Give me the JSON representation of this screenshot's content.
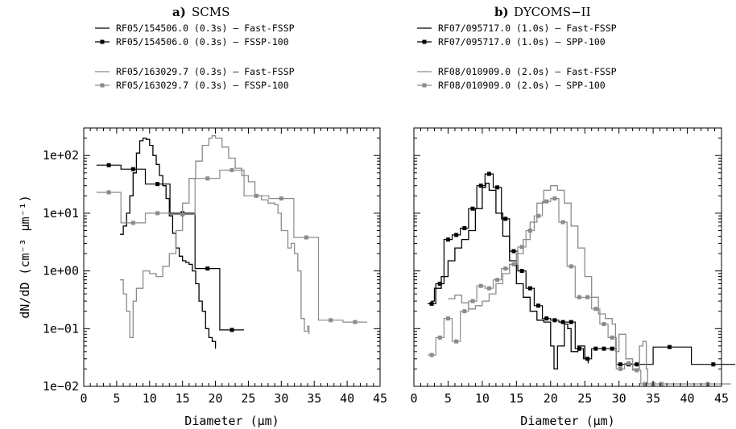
{
  "colors": {
    "dark": "#000000",
    "light": "#8a8a8a",
    "frame": "#000000"
  },
  "chart_data": [
    {
      "type": "line",
      "panel_letter": "a)",
      "title": "SCMS",
      "xlabel": "Diameter (μm)",
      "ylabel": "dN/dD (cm⁻³ μm⁻¹)",
      "xlim": [
        0,
        45
      ],
      "ylim": [
        0.01,
        300
      ],
      "yscale": "log",
      "xticks": [
        "0",
        "5",
        "10",
        "15",
        "20",
        "25",
        "30",
        "35",
        "40",
        "45"
      ],
      "yticks": [
        "1e−02",
        "1e−01",
        "1e+00",
        "1e+01",
        "1e+02"
      ],
      "grid": false,
      "legend_position": "above-plot",
      "series": [
        {
          "name": "RF05/154506.0 (0.3s) – Fast-FSSP",
          "color": "dark",
          "markers": false,
          "x": [
            5.5,
            6.0,
            6.5,
            7.0,
            7.5,
            8.0,
            8.5,
            9.0,
            9.5,
            10.0,
            10.5,
            11.0,
            11.5,
            12.0,
            12.5,
            13.0,
            13.5,
            14.0,
            14.5,
            15.0,
            15.5,
            16.0,
            16.5,
            17.0,
            17.5,
            18.0,
            18.5,
            19.0,
            19.5,
            20.0
          ],
          "y": [
            4.3,
            6.0,
            10,
            20,
            50,
            110,
            180,
            200,
            190,
            150,
            100,
            70,
            45,
            30,
            18,
            9,
            4.5,
            2.5,
            1.8,
            1.5,
            1.4,
            1.3,
            1.0,
            0.6,
            0.3,
            0.2,
            0.1,
            0.07,
            0.06,
            0.045
          ]
        },
        {
          "name": "RF05/154506.0 (0.3s) – FSSP-100",
          "color": "dark",
          "markers": true,
          "x": [
            3.8,
            7.5,
            11.2,
            15.0,
            18.8,
            22.5
          ],
          "y": [
            68,
            58,
            32,
            10,
            1.1,
            0.095
          ]
        },
        {
          "name": "RF05/163029.7 (0.3s) – Fast-FSSP",
          "color": "light",
          "markers": false,
          "x": [
            5.5,
            6.0,
            6.5,
            7.0,
            7.5,
            8.0,
            9.0,
            10.0,
            11.0,
            12.0,
            13.0,
            14.0,
            15.0,
            16.0,
            17.0,
            18.0,
            19.0,
            19.5,
            20.0,
            21.0,
            22.0,
            23.0,
            24.0,
            25.0,
            26.0,
            27.0,
            28.0,
            29.0,
            29.5,
            30.0,
            31.0,
            31.5,
            32.0,
            32.5,
            33.0,
            33.5,
            34.0,
            34.2
          ],
          "y": [
            0.7,
            0.4,
            0.2,
            0.07,
            0.3,
            0.5,
            1.0,
            0.9,
            0.8,
            1.2,
            2,
            5,
            15,
            40,
            80,
            150,
            200,
            220,
            200,
            140,
            90,
            60,
            45,
            35,
            20,
            17,
            15,
            14,
            10,
            5,
            2.5,
            3,
            2,
            1.0,
            0.15,
            0.09,
            0.11,
            0.08
          ]
        },
        {
          "name": "RF05/163029.7 (0.3s) – FSSP-100",
          "color": "light",
          "markers": true,
          "x": [
            3.8,
            7.5,
            11.2,
            15.0,
            18.8,
            22.5,
            26.2,
            30.0,
            33.8,
            37.5,
            41.2
          ],
          "y": [
            23,
            6.8,
            10,
            9.5,
            40,
            56,
            20,
            18,
            3.8,
            0.14,
            0.13
          ]
        }
      ]
    },
    {
      "type": "line",
      "panel_letter": "b)",
      "title": "DYCOMS−II",
      "xlabel": "Diameter (μm)",
      "ylabel": "",
      "xlim": [
        0,
        45
      ],
      "ylim": [
        0.01,
        300
      ],
      "yscale": "log",
      "xticks": [
        "0",
        "5",
        "10",
        "15",
        "20",
        "25",
        "30",
        "35",
        "40",
        "45"
      ],
      "yticks": [],
      "grid": false,
      "legend_position": "above-plot",
      "series": [
        {
          "name": "RF07/095717.0 (1.0s) – Fast-FSSP",
          "color": "dark",
          "markers": false,
          "x": [
            2.5,
            3.0,
            4.0,
            5.0,
            6.0,
            7.0,
            8.0,
            9.0,
            10.0,
            10.5,
            11.0,
            12.0,
            13.0,
            14.0,
            15.0,
            16.0,
            17.0,
            18.0,
            19.0,
            20.0,
            20.5,
            21.0,
            22.0,
            22.5,
            23.0,
            24.0,
            25.0,
            25.5
          ],
          "y": [
            0.3,
            0.5,
            0.8,
            1.5,
            2.5,
            3.5,
            5,
            12,
            28,
            33,
            25,
            10,
            4,
            1.5,
            0.6,
            0.35,
            0.2,
            0.14,
            0.13,
            0.05,
            0.02,
            0.05,
            0.12,
            0.1,
            0.04,
            0.05,
            0.03,
            0.025
          ]
        },
        {
          "name": "RF07/095717.0 (1.0s) – SPP-100",
          "color": "dark",
          "markers": true,
          "x": [
            2.6,
            3.8,
            5.0,
            6.2,
            7.4,
            8.6,
            9.8,
            11.0,
            12.2,
            13.4,
            14.6,
            15.8,
            17.0,
            18.2,
            19.4,
            20.6,
            21.8,
            23.0,
            24.2,
            25.4,
            26.6,
            27.8,
            29.0,
            30.2,
            31.4,
            32.6,
            37.4,
            43.8
          ],
          "y": [
            0.27,
            0.6,
            3.5,
            4.2,
            5.5,
            12,
            30,
            48,
            28,
            8,
            2.2,
            1.0,
            0.5,
            0.25,
            0.15,
            0.14,
            0.13,
            0.13,
            0.045,
            0.03,
            0.045,
            0.045,
            0.045,
            0.024,
            0.024,
            0.024,
            0.048,
            0.024
          ]
        },
        {
          "name": "RF08/010909.0 (2.0s) – Fast-FSSP",
          "color": "light",
          "markers": false,
          "x": [
            5.0,
            6.0,
            7.0,
            8.0,
            9.0,
            10.0,
            11.0,
            12.0,
            13.0,
            14.0,
            15.0,
            16.0,
            17.0,
            18.0,
            19.0,
            20.0,
            21.0,
            22.0,
            23.0,
            24.0,
            25.0,
            26.0,
            27.0,
            28.0,
            29.0,
            29.5,
            30.0,
            31.0,
            32.0,
            33.0,
            33.5,
            34.0,
            34.2
          ],
          "y": [
            0.33,
            0.38,
            0.28,
            0.22,
            0.25,
            0.3,
            0.4,
            0.6,
            0.9,
            1.3,
            2,
            3.5,
            7,
            15,
            25,
            30,
            25,
            15,
            6,
            2.5,
            0.8,
            0.35,
            0.18,
            0.15,
            0.12,
            0.04,
            0.08,
            0.03,
            0.02,
            0.05,
            0.06,
            0.02,
            0.011
          ]
        },
        {
          "name": "RF08/010909.0 (2.0s) – SPP-100",
          "color": "light",
          "markers": true,
          "x": [
            2.6,
            3.8,
            5.0,
            6.2,
            7.4,
            8.6,
            9.8,
            11.0,
            12.2,
            13.4,
            14.6,
            15.8,
            17.0,
            18.2,
            19.4,
            20.6,
            21.8,
            23.0,
            24.2,
            25.4,
            26.6,
            27.8,
            29.0,
            30.2,
            31.4,
            32.6,
            33.8,
            35.0,
            36.2,
            43.0
          ],
          "y": [
            0.035,
            0.07,
            0.15,
            0.06,
            0.2,
            0.3,
            0.55,
            0.5,
            0.7,
            1.1,
            1.3,
            2.6,
            5,
            9,
            16,
            18,
            7,
            1.2,
            0.35,
            0.35,
            0.22,
            0.12,
            0.07,
            0.02,
            0.025,
            0.019,
            0.011,
            0.011,
            0.011,
            0.011
          ]
        }
      ]
    }
  ]
}
